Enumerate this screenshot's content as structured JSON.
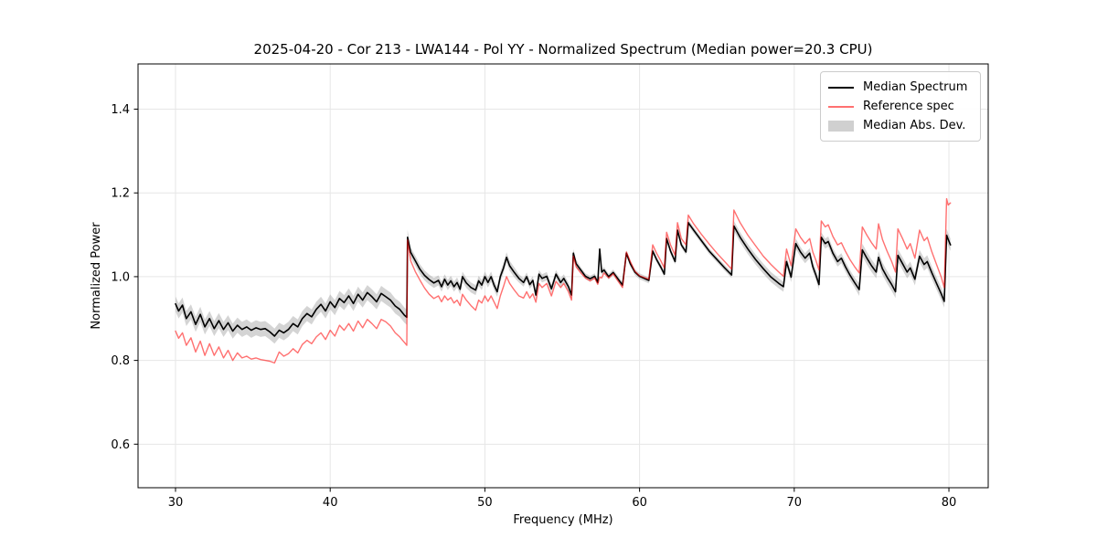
{
  "figure": {
    "title": "2025-04-20 - Cor 213 - LWA144 - Pol YY - Normalized Spectrum (Median power=20.3 CPU)",
    "xlabel": "Frequency (MHz)",
    "ylabel": "Normalized Power"
  },
  "legend": {
    "items": [
      {
        "label": "Median Spectrum",
        "type": "line",
        "color": "#000000",
        "opacity": 1.0
      },
      {
        "label": "Reference spec",
        "type": "line",
        "color": "#ff0000",
        "opacity": 0.56
      },
      {
        "label": "Median Abs. Dev.",
        "type": "patch",
        "color": "#999999",
        "opacity": 0.45
      }
    ]
  },
  "chart_data": {
    "type": "line",
    "title": "2025-04-20 - Cor 213 - LWA144 - Pol YY - Normalized Spectrum (Median power=20.3 CPU)",
    "xlabel": "Frequency (MHz)",
    "ylabel": "Normalized Power",
    "grid": true,
    "legend_position": "upper right",
    "xlim": [
      27.577,
      82.54
    ],
    "ylim": [
      0.496,
      1.508
    ],
    "xticks": [
      30,
      40,
      50,
      60,
      70,
      80
    ],
    "yticks": [
      0.6,
      0.8,
      1.0,
      1.2,
      1.4
    ],
    "ytick_labels": [
      "0.6",
      "0.8",
      "1.0",
      "1.2",
      "1.4"
    ],
    "x": [
      30.0,
      30.2,
      30.45,
      30.7,
      31.0,
      31.3,
      31.6,
      31.9,
      32.2,
      32.5,
      32.8,
      33.1,
      33.4,
      33.7,
      34.0,
      34.3,
      34.6,
      34.9,
      35.2,
      35.5,
      35.8,
      36.1,
      36.4,
      36.7,
      37.0,
      37.3,
      37.6,
      37.9,
      38.2,
      38.5,
      38.8,
      39.1,
      39.4,
      39.7,
      40.0,
      40.3,
      40.6,
      40.9,
      41.2,
      41.5,
      41.8,
      42.1,
      42.4,
      42.7,
      43.0,
      43.3,
      43.6,
      43.9,
      44.2,
      44.5,
      44.8,
      44.95,
      45.0,
      45.2,
      45.5,
      45.8,
      46.1,
      46.4,
      46.7,
      47.0,
      47.2,
      47.4,
      47.6,
      47.8,
      48.0,
      48.2,
      48.4,
      48.55,
      48.8,
      49.1,
      49.4,
      49.6,
      49.8,
      50.0,
      50.2,
      50.4,
      50.6,
      50.8,
      51.0,
      51.2,
      51.4,
      51.6,
      51.9,
      52.2,
      52.5,
      52.7,
      52.9,
      53.1,
      53.3,
      53.5,
      53.7,
      54.0,
      54.3,
      54.6,
      54.9,
      55.1,
      55.4,
      55.6,
      55.72,
      55.9,
      56.2,
      56.5,
      56.8,
      57.1,
      57.3,
      57.42,
      57.55,
      57.7,
      58.0,
      58.3,
      58.6,
      58.9,
      59.15,
      59.4,
      59.7,
      60.0,
      60.3,
      60.6,
      60.85,
      61.1,
      61.4,
      61.6,
      61.75,
      62.0,
      62.3,
      62.45,
      62.7,
      63.0,
      63.15,
      63.5,
      64.0,
      64.5,
      65.0,
      65.5,
      65.95,
      66.1,
      66.5,
      67.0,
      67.5,
      68.0,
      68.5,
      69.0,
      69.3,
      69.5,
      69.8,
      70.1,
      70.4,
      70.7,
      71.0,
      71.2,
      71.4,
      71.6,
      71.75,
      72.0,
      72.2,
      72.5,
      72.8,
      73.05,
      73.3,
      73.6,
      73.9,
      74.2,
      74.4,
      74.7,
      75.0,
      75.3,
      75.45,
      75.7,
      76.0,
      76.3,
      76.55,
      76.7,
      77.0,
      77.3,
      77.5,
      77.8,
      78.1,
      78.4,
      78.6,
      78.9,
      79.2,
      79.5,
      79.7,
      79.85,
      79.95,
      80.1
    ],
    "series": [
      {
        "name": "Median Spectrum",
        "color": "#000000",
        "opacity": 1.0,
        "linewidth": 1.6,
        "values": [
          0.935,
          0.918,
          0.932,
          0.9,
          0.916,
          0.886,
          0.91,
          0.88,
          0.9,
          0.876,
          0.895,
          0.874,
          0.89,
          0.87,
          0.884,
          0.874,
          0.88,
          0.872,
          0.878,
          0.874,
          0.876,
          0.868,
          0.858,
          0.872,
          0.866,
          0.874,
          0.888,
          0.88,
          0.9,
          0.912,
          0.904,
          0.922,
          0.934,
          0.918,
          0.94,
          0.926,
          0.948,
          0.938,
          0.954,
          0.936,
          0.958,
          0.944,
          0.962,
          0.952,
          0.94,
          0.96,
          0.952,
          0.944,
          0.93,
          0.922,
          0.908,
          0.903,
          1.094,
          1.058,
          1.038,
          1.018,
          1.003,
          0.993,
          0.985,
          0.991,
          0.976,
          0.994,
          0.98,
          0.99,
          0.976,
          0.986,
          0.97,
          1.0,
          0.985,
          0.974,
          0.968,
          0.99,
          0.98,
          1.0,
          0.986,
          1.0,
          0.979,
          0.964,
          1.0,
          1.02,
          1.046,
          1.026,
          1.01,
          0.996,
          0.986,
          1.0,
          0.981,
          0.991,
          0.956,
          1.006,
          0.996,
          1.001,
          0.971,
          1.006,
          0.986,
          0.996,
          0.976,
          0.956,
          1.056,
          1.031,
          1.016,
          1.001,
          0.995,
          1.001,
          0.986,
          1.066,
          1.011,
          1.016,
          1.0,
          1.01,
          0.995,
          0.98,
          1.056,
          1.031,
          1.011,
          1.001,
          0.996,
          0.991,
          1.061,
          1.041,
          1.021,
          1.006,
          1.091,
          1.061,
          1.036,
          1.111,
          1.076,
          1.059,
          1.129,
          1.111,
          1.086,
          1.061,
          1.041,
          1.021,
          1.004,
          1.121,
          1.094,
          1.066,
          1.041,
          1.019,
          0.999,
          0.984,
          0.976,
          1.036,
          0.999,
          1.079,
          1.059,
          1.044,
          1.056,
          1.024,
          1.004,
          0.981,
          1.094,
          1.079,
          1.084,
          1.056,
          1.036,
          1.044,
          1.024,
          1.004,
          0.986,
          0.969,
          1.064,
          1.044,
          1.026,
          1.011,
          1.046,
          1.019,
          0.999,
          0.981,
          0.964,
          1.051,
          1.031,
          1.011,
          1.021,
          0.994,
          1.049,
          1.029,
          1.036,
          1.009,
          0.984,
          0.959,
          0.941,
          1.099,
          1.089,
          1.076
        ]
      },
      {
        "name": "Reference spec",
        "color": "#ff0000",
        "opacity": 0.56,
        "linewidth": 1.4,
        "values": [
          0.87,
          0.853,
          0.866,
          0.836,
          0.854,
          0.82,
          0.846,
          0.812,
          0.84,
          0.812,
          0.832,
          0.806,
          0.824,
          0.8,
          0.818,
          0.806,
          0.81,
          0.803,
          0.806,
          0.802,
          0.8,
          0.798,
          0.794,
          0.82,
          0.81,
          0.816,
          0.828,
          0.818,
          0.838,
          0.848,
          0.84,
          0.856,
          0.866,
          0.85,
          0.872,
          0.858,
          0.884,
          0.872,
          0.888,
          0.87,
          0.894,
          0.878,
          0.898,
          0.888,
          0.876,
          0.898,
          0.892,
          0.882,
          0.866,
          0.856,
          0.843,
          0.836,
          1.088,
          1.038,
          1.012,
          0.992,
          0.973,
          0.958,
          0.948,
          0.954,
          0.94,
          0.954,
          0.944,
          0.95,
          0.937,
          0.944,
          0.931,
          0.958,
          0.944,
          0.931,
          0.92,
          0.944,
          0.937,
          0.954,
          0.941,
          0.954,
          0.939,
          0.924,
          0.954,
          0.976,
          1.0,
          0.984,
          0.968,
          0.954,
          0.949,
          0.964,
          0.949,
          0.959,
          0.939,
          0.984,
          0.974,
          0.984,
          0.954,
          0.989,
          0.974,
          0.984,
          0.964,
          0.944,
          1.049,
          1.024,
          1.009,
          0.997,
          0.99,
          0.997,
          0.982,
          0.999,
          0.997,
          1.009,
          0.997,
          1.007,
          0.99,
          0.974,
          1.059,
          1.036,
          1.013,
          1.002,
          0.998,
          0.994,
          1.076,
          1.056,
          1.036,
          1.021,
          1.106,
          1.076,
          1.051,
          1.129,
          1.091,
          1.076,
          1.147,
          1.126,
          1.101,
          1.078,
          1.056,
          1.036,
          1.018,
          1.159,
          1.129,
          1.099,
          1.074,
          1.049,
          1.029,
          1.011,
          1.001,
          1.066,
          1.026,
          1.114,
          1.094,
          1.079,
          1.091,
          1.059,
          1.039,
          1.016,
          1.133,
          1.119,
          1.124,
          1.096,
          1.076,
          1.081,
          1.061,
          1.041,
          1.024,
          1.009,
          1.119,
          1.099,
          1.081,
          1.066,
          1.126,
          1.089,
          1.061,
          1.036,
          1.011,
          1.114,
          1.091,
          1.066,
          1.079,
          1.044,
          1.111,
          1.086,
          1.094,
          1.059,
          1.029,
          0.999,
          0.974,
          1.186,
          1.171,
          1.176
        ]
      }
    ],
    "mad_band": {
      "name": "Median Abs. Dev.",
      "around_series": "Median Spectrum",
      "color": "#999999",
      "opacity": 0.42,
      "half_width_segments": [
        [
          27.5,
          45.0,
          0.018
        ],
        [
          45.0,
          52.0,
          0.012
        ],
        [
          52.0,
          56.0,
          0.01
        ],
        [
          56.0,
          66.0,
          0.007
        ],
        [
          66.0,
          74.0,
          0.012
        ],
        [
          74.0,
          80.2,
          0.015
        ]
      ]
    }
  }
}
